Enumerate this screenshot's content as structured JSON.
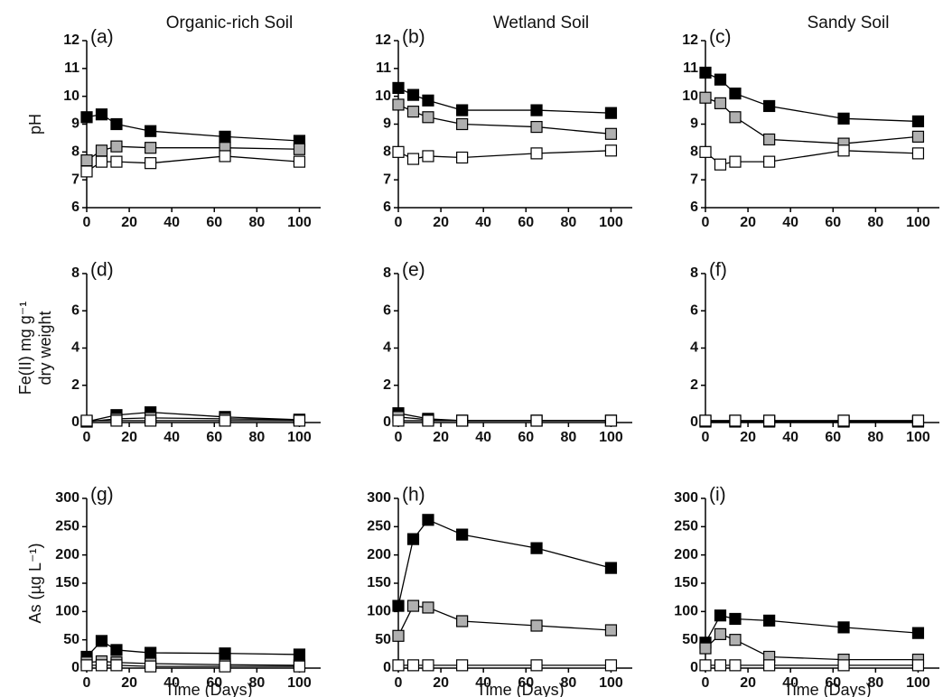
{
  "chart_data": [
    {
      "type": "line",
      "label": "(a)",
      "title": "Organic-rich Soil",
      "ylabel": [
        "pH"
      ],
      "x": [
        0,
        7,
        14,
        30,
        65,
        100
      ],
      "xlim": [
        0,
        110
      ],
      "xticks": [
        0,
        20,
        40,
        60,
        80,
        100
      ],
      "ylim": [
        6,
        12
      ],
      "yticks": [
        6,
        7,
        8,
        9,
        10,
        11,
        12
      ],
      "series": [
        {
          "color": "#000000",
          "values": [
            9.25,
            9.35,
            9.0,
            8.75,
            8.55,
            8.4
          ]
        },
        {
          "color": "#b0b0b0",
          "values": [
            7.7,
            8.05,
            8.2,
            8.15,
            8.15,
            8.1
          ]
        },
        {
          "color": "#ffffff",
          "values": [
            7.3,
            7.65,
            7.65,
            7.6,
            7.85,
            7.65
          ]
        }
      ]
    },
    {
      "type": "line",
      "label": "(b)",
      "title": "Wetland Soil",
      "x": [
        0,
        7,
        14,
        30,
        65,
        100
      ],
      "xlim": [
        0,
        110
      ],
      "xticks": [
        0,
        20,
        40,
        60,
        80,
        100
      ],
      "ylim": [
        6,
        12
      ],
      "yticks": [
        6,
        7,
        8,
        9,
        10,
        11,
        12
      ],
      "series": [
        {
          "color": "#000000",
          "values": [
            10.3,
            10.05,
            9.85,
            9.5,
            9.5,
            9.4
          ]
        },
        {
          "color": "#b0b0b0",
          "values": [
            9.7,
            9.45,
            9.25,
            9.0,
            8.9,
            8.65
          ]
        },
        {
          "color": "#ffffff",
          "values": [
            8.0,
            7.75,
            7.85,
            7.8,
            7.95,
            8.05
          ]
        }
      ]
    },
    {
      "type": "line",
      "label": "(c)",
      "title": "Sandy Soil",
      "x": [
        0,
        7,
        14,
        30,
        65,
        100
      ],
      "xlim": [
        0,
        110
      ],
      "xticks": [
        0,
        20,
        40,
        60,
        80,
        100
      ],
      "ylim": [
        6,
        12
      ],
      "yticks": [
        6,
        7,
        8,
        9,
        10,
        11,
        12
      ],
      "series": [
        {
          "color": "#000000",
          "values": [
            10.85,
            10.6,
            10.1,
            9.65,
            9.2,
            9.1
          ]
        },
        {
          "color": "#b0b0b0",
          "values": [
            9.95,
            9.75,
            9.25,
            8.45,
            8.3,
            8.55
          ]
        },
        {
          "color": "#ffffff",
          "values": [
            8.0,
            7.55,
            7.65,
            7.65,
            8.05,
            7.95
          ]
        }
      ]
    },
    {
      "type": "line",
      "label": "(d)",
      "ylabel": [
        "Fe(II) mg g⁻¹",
        "dry weight"
      ],
      "x": [
        0,
        14,
        30,
        65,
        100
      ],
      "xlim": [
        0,
        110
      ],
      "xticks": [
        0,
        20,
        40,
        60,
        80,
        100
      ],
      "ylim": [
        0,
        8
      ],
      "yticks": [
        0,
        2,
        4,
        6,
        8
      ],
      "series": [
        {
          "color": "#000000",
          "values": [
            0.05,
            0.4,
            0.55,
            0.3,
            0.15
          ]
        },
        {
          "color": "#b0b0b0",
          "values": [
            0.05,
            0.2,
            0.25,
            0.2,
            0.15
          ]
        },
        {
          "color": "#ffffff",
          "values": [
            0.1,
            0.1,
            0.1,
            0.1,
            0.1
          ]
        }
      ]
    },
    {
      "type": "line",
      "label": "(e)",
      "x": [
        0,
        14,
        30,
        65,
        100
      ],
      "xlim": [
        0,
        110
      ],
      "xticks": [
        0,
        20,
        40,
        60,
        80,
        100
      ],
      "ylim": [
        0,
        8
      ],
      "yticks": [
        0,
        2,
        4,
        6,
        8
      ],
      "series": [
        {
          "color": "#000000",
          "values": [
            0.5,
            0.2,
            0.1,
            0.1,
            0.1
          ]
        },
        {
          "color": "#b0b0b0",
          "values": [
            0.3,
            0.15,
            0.1,
            0.1,
            0.1
          ]
        },
        {
          "color": "#ffffff",
          "values": [
            0.1,
            0.1,
            0.1,
            0.1,
            0.1
          ]
        }
      ]
    },
    {
      "type": "line",
      "label": "(f)",
      "x": [
        0,
        14,
        30,
        65,
        100
      ],
      "xlim": [
        0,
        110
      ],
      "xticks": [
        0,
        20,
        40,
        60,
        80,
        100
      ],
      "ylim": [
        0,
        8
      ],
      "yticks": [
        0,
        2,
        4,
        6,
        8
      ],
      "series": [
        {
          "color": "#000000",
          "values": [
            0.05,
            0.05,
            0.05,
            0.05,
            0.05
          ]
        },
        {
          "color": "#b0b0b0",
          "values": [
            0.1,
            0.1,
            0.1,
            0.1,
            0.1
          ]
        },
        {
          "color": "#ffffff",
          "values": [
            0.1,
            0.1,
            0.1,
            0.1,
            0.1
          ]
        }
      ]
    },
    {
      "type": "line",
      "label": "(g)",
      "ylabel": [
        "As (µg L⁻¹)"
      ],
      "xlabel": "Time (Days)",
      "x": [
        0,
        7,
        14,
        30,
        65,
        100
      ],
      "xlim": [
        0,
        110
      ],
      "xticks": [
        0,
        20,
        40,
        60,
        80,
        100
      ],
      "ylim": [
        0,
        300
      ],
      "yticks": [
        0,
        50,
        100,
        150,
        200,
        250,
        300
      ],
      "series": [
        {
          "color": "#000000",
          "values": [
            20,
            48,
            32,
            27,
            26,
            24
          ]
        },
        {
          "color": "#b0b0b0",
          "values": [
            10,
            12,
            10,
            8,
            6,
            5
          ]
        },
        {
          "color": "#ffffff",
          "values": [
            5,
            5,
            5,
            3,
            3,
            3
          ]
        }
      ]
    },
    {
      "type": "line",
      "label": "(h)",
      "xlabel": "Time (Days)",
      "x": [
        0,
        7,
        14,
        30,
        65,
        100
      ],
      "xlim": [
        0,
        110
      ],
      "xticks": [
        0,
        20,
        40,
        60,
        80,
        100
      ],
      "ylim": [
        0,
        300
      ],
      "yticks": [
        0,
        50,
        100,
        150,
        200,
        250,
        300
      ],
      "series": [
        {
          "color": "#000000",
          "values": [
            110,
            228,
            262,
            236,
            212,
            177
          ]
        },
        {
          "color": "#b0b0b0",
          "values": [
            57,
            110,
            107,
            83,
            75,
            67
          ]
        },
        {
          "color": "#ffffff",
          "values": [
            5,
            5,
            5,
            5,
            5,
            5
          ]
        }
      ]
    },
    {
      "type": "line",
      "label": "(i)",
      "xlabel": "Time (Days)",
      "x": [
        0,
        7,
        14,
        30,
        65,
        100
      ],
      "xlim": [
        0,
        110
      ],
      "xticks": [
        0,
        20,
        40,
        60,
        80,
        100
      ],
      "ylim": [
        0,
        300
      ],
      "yticks": [
        0,
        50,
        100,
        150,
        200,
        250,
        300
      ],
      "series": [
        {
          "color": "#000000",
          "values": [
            45,
            93,
            87,
            84,
            72,
            62
          ]
        },
        {
          "color": "#b0b0b0",
          "values": [
            35,
            60,
            50,
            20,
            15,
            15
          ]
        },
        {
          "color": "#ffffff",
          "values": [
            5,
            5,
            5,
            5,
            5,
            5
          ]
        }
      ]
    }
  ]
}
